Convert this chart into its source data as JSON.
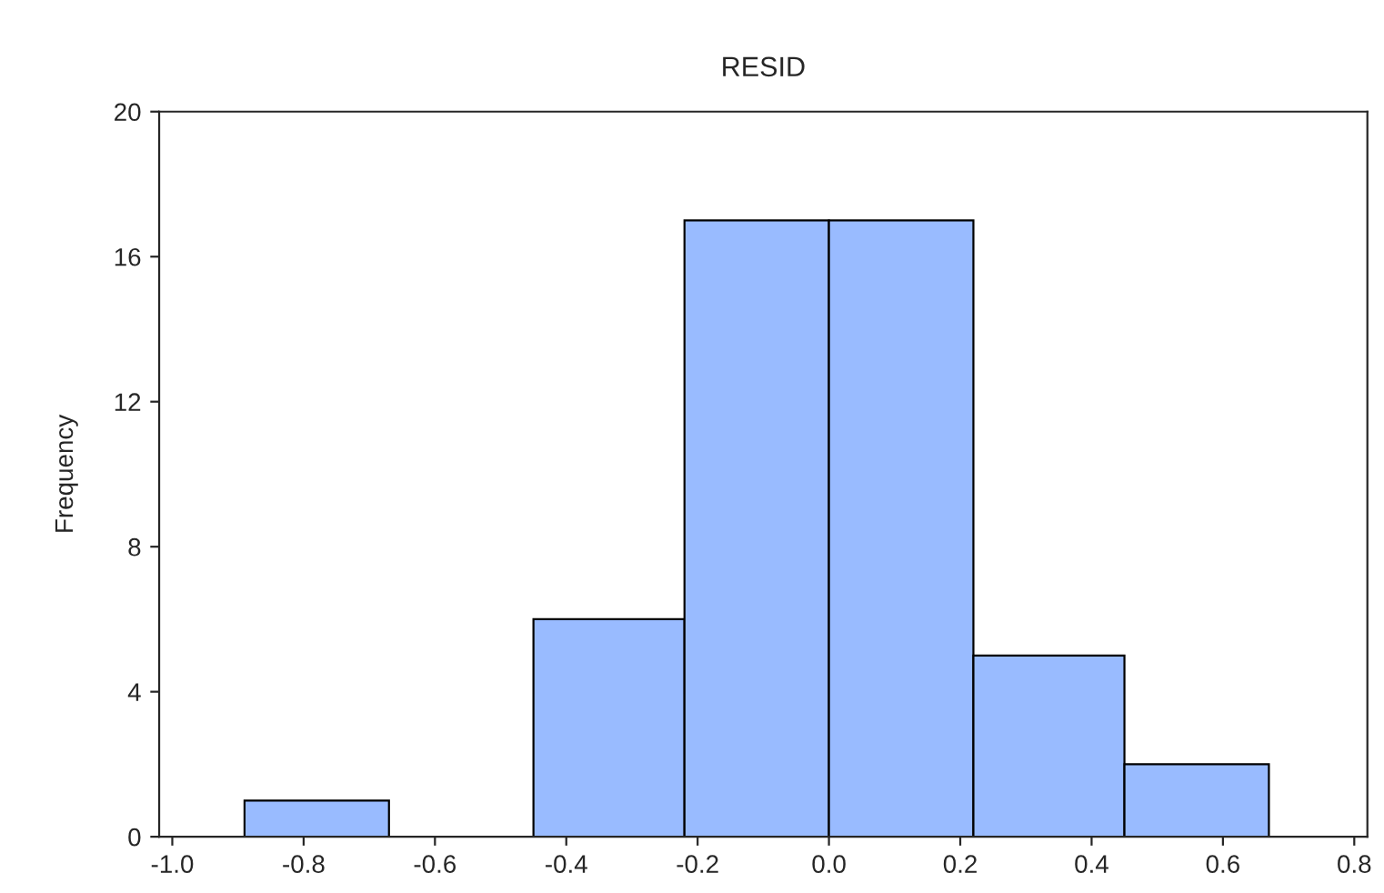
{
  "chart_data": {
    "type": "histogram",
    "title": "RESID",
    "ylabel": "Frequency",
    "bins": [
      -0.89,
      -0.67,
      -0.45,
      -0.22,
      0,
      0.22,
      0.45,
      0.67
    ],
    "values": [
      1,
      0,
      6,
      17,
      17,
      5,
      2
    ],
    "color": "#99bbff",
    "xlim": [
      -1.02,
      0.82
    ],
    "xticks": [
      {
        "value": -1.0,
        "label": "-1.0"
      },
      {
        "value": -0.8,
        "label": "-0.8"
      },
      {
        "value": -0.6,
        "label": "-0.6"
      },
      {
        "value": -0.4,
        "label": "-0.4"
      },
      {
        "value": -0.2,
        "label": "-0.2"
      },
      {
        "value": 0,
        "label": "0.0"
      },
      {
        "value": 0.2,
        "label": "0.2"
      },
      {
        "value": 0.4,
        "label": "0.4"
      },
      {
        "value": 0.6,
        "label": "0.6"
      },
      {
        "value": 0.8,
        "label": "0.8"
      }
    ],
    "ylim": [
      0,
      20
    ],
    "yticks": [
      0,
      4,
      8,
      12,
      16,
      20
    ],
    "grid": false
  }
}
